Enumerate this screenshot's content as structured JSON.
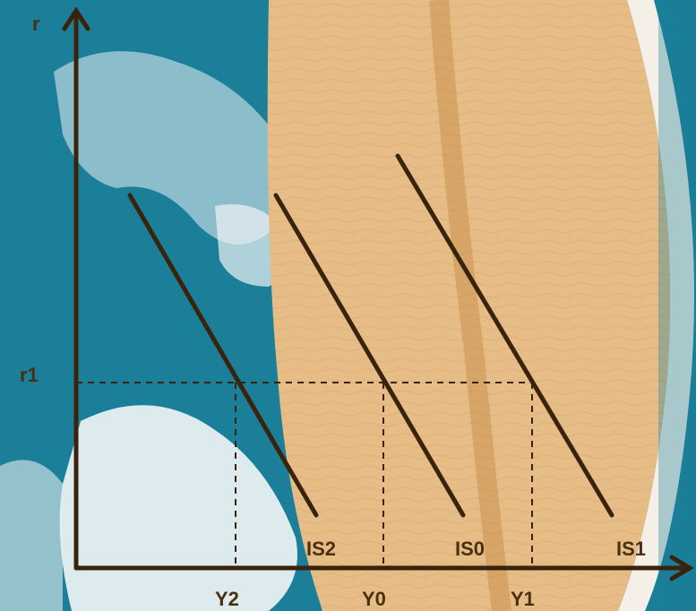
{
  "diagram": {
    "axes": {
      "y_label": "r",
      "x_label": ""
    },
    "curves": [
      {
        "id": "is2",
        "label": "IS2"
      },
      {
        "id": "is0",
        "label": "IS0"
      },
      {
        "id": "is1",
        "label": "IS1"
      }
    ],
    "rate_marks": [
      {
        "id": "r1",
        "label": "r1"
      }
    ],
    "output_marks": [
      {
        "id": "y2",
        "label": "Y2"
      },
      {
        "id": "y0",
        "label": "Y0"
      },
      {
        "id": "y1",
        "label": "Y1"
      }
    ],
    "colors": {
      "ink": "#3a230d",
      "label": "#4a2f10",
      "water": "#1b7f99",
      "wood": "#e6bd86",
      "foam": "#e9f1f2"
    }
  }
}
